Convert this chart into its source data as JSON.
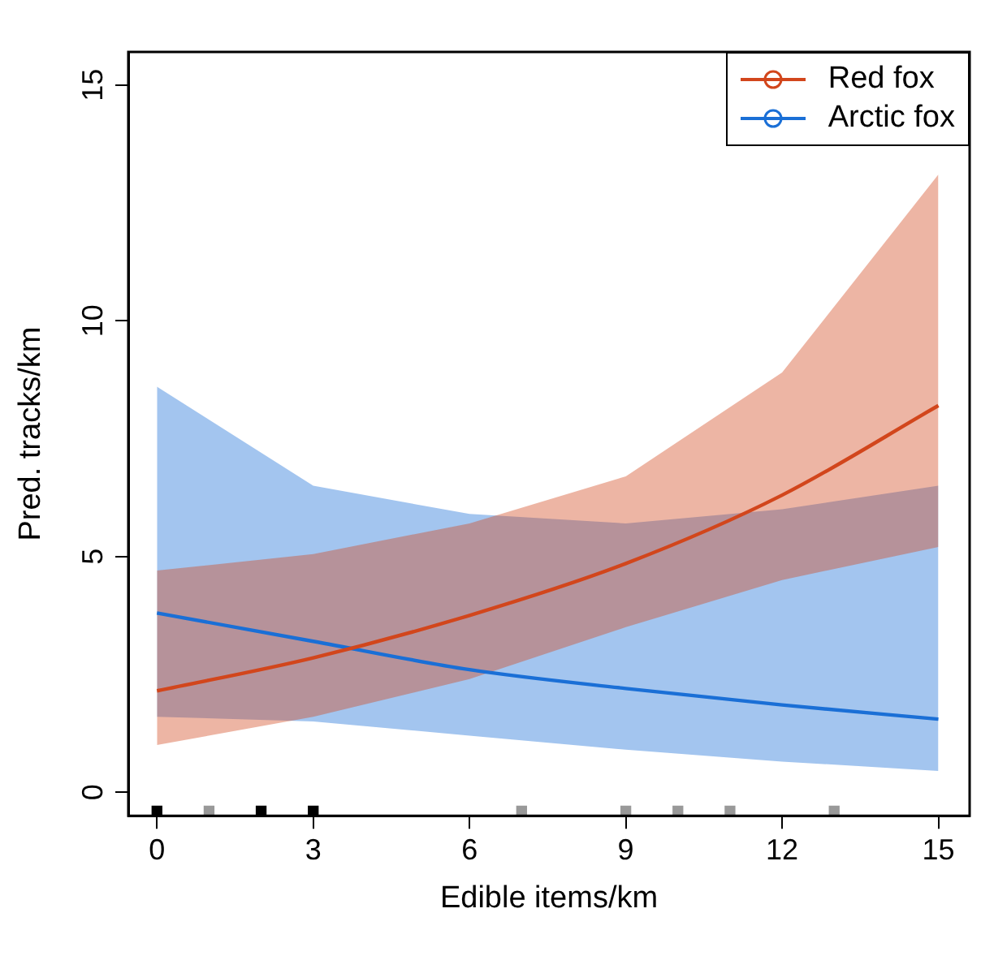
{
  "chart_data": {
    "type": "line",
    "xlabel": "Edible items/km",
    "ylabel": "Pred. tracks/km",
    "x": [
      0,
      3,
      6,
      9,
      12,
      15
    ],
    "series": [
      {
        "name": "Red fox",
        "color": "#d2461c",
        "values": [
          2.15,
          2.85,
          3.75,
          4.85,
          6.3,
          8.2
        ],
        "lower": [
          1.0,
          1.6,
          2.4,
          3.5,
          4.5,
          5.2
        ],
        "upper": [
          4.7,
          5.05,
          5.7,
          6.7,
          8.9,
          13.1
        ]
      },
      {
        "name": "Arctic fox",
        "color": "#1a6fd6",
        "values": [
          3.8,
          3.2,
          2.6,
          2.2,
          1.85,
          1.55
        ],
        "lower": [
          1.6,
          1.5,
          1.2,
          0.9,
          0.65,
          0.45
        ],
        "upper": [
          8.6,
          6.5,
          5.9,
          5.7,
          6.0,
          6.5
        ]
      },
      {
        "type": "scatter",
        "marker": "square",
        "x": [
          0,
          1,
          2,
          3,
          7,
          9,
          10,
          11,
          13
        ],
        "values": [
          -0.4,
          -0.4,
          -0.4,
          -0.4,
          -0.4,
          -0.4,
          -0.4,
          -0.4,
          -0.4
        ],
        "colors": [
          "#000000",
          "#999999",
          "#000000",
          "#000000",
          "#999999",
          "#999999",
          "#999999",
          "#999999",
          "#999999"
        ]
      }
    ],
    "xlim": [
      -0.55,
      15.6
    ],
    "xticks": [
      0,
      3,
      6,
      9,
      12,
      15
    ],
    "ylim": [
      -0.5,
      15.7
    ],
    "yticks": [
      0,
      5,
      10,
      15
    ],
    "marker": "none",
    "legend": "top right",
    "grid": false
  }
}
